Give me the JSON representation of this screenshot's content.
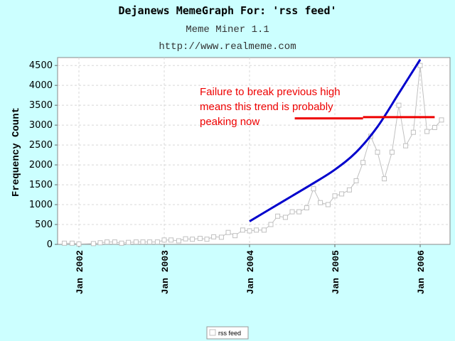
{
  "chart_data": {
    "type": "line",
    "title": "Dejanews MemeGraph For: 'rss feed'",
    "subtitle": "Meme Miner 1.1",
    "url": "http://www.realmeme.com",
    "ylabel": "Frequency Count",
    "xlabel": "",
    "ylim": [
      0,
      4700
    ],
    "yticks": [
      0,
      500,
      1000,
      1500,
      2000,
      2500,
      3000,
      3500,
      4000,
      4500
    ],
    "xlim": [
      2001.75,
      2006.35
    ],
    "xticks": [
      {
        "value": 2002.0,
        "label": "Jan 2002"
      },
      {
        "value": 2003.0,
        "label": "Jan 2003"
      },
      {
        "value": 2004.0,
        "label": "Jan 2004"
      },
      {
        "value": 2005.0,
        "label": "Jan 2005"
      },
      {
        "value": 2006.0,
        "label": "Jan 2006"
      }
    ],
    "grid": true,
    "legend": "bottom-center",
    "series": [
      {
        "name": "rss feed",
        "color": "#c0c0c0",
        "x": [
          2001.83,
          2001.92,
          2002.0,
          2002.17,
          2002.25,
          2002.33,
          2002.42,
          2002.5,
          2002.58,
          2002.67,
          2002.75,
          2002.83,
          2002.92,
          2003.0,
          2003.08,
          2003.17,
          2003.25,
          2003.33,
          2003.42,
          2003.5,
          2003.58,
          2003.67,
          2003.75,
          2003.83,
          2003.92,
          2004.0,
          2004.08,
          2004.17,
          2004.25,
          2004.33,
          2004.42,
          2004.5,
          2004.58,
          2004.67,
          2004.75,
          2004.83,
          2004.92,
          2005.0,
          2005.08,
          2005.17,
          2005.25,
          2005.33,
          2005.42,
          2005.5,
          2005.58,
          2005.67,
          2005.75,
          2005.83,
          2005.92,
          2006.0,
          2006.08,
          2006.17,
          2006.25
        ],
        "values": [
          30,
          30,
          10,
          20,
          40,
          60,
          60,
          30,
          50,
          60,
          60,
          60,
          60,
          110,
          110,
          90,
          140,
          130,
          150,
          130,
          190,
          180,
          300,
          220,
          360,
          340,
          360,
          360,
          500,
          710,
          680,
          820,
          820,
          920,
          1400,
          1050,
          1000,
          1220,
          1270,
          1370,
          1600,
          2060,
          2720,
          2320,
          1650,
          2320,
          3500,
          2480,
          2820,
          4500,
          2840,
          2940,
          3130
        ]
      }
    ],
    "trend": {
      "color": "#0000cc",
      "x": [
        2004.0,
        2004.25,
        2004.5,
        2004.75,
        2005.0,
        2005.25,
        2005.5,
        2005.75,
        2006.0
      ],
      "values": [
        580,
        900,
        1220,
        1540,
        1880,
        2320,
        2960,
        3800,
        4650
      ]
    },
    "annotation": {
      "lines": [
        "Failure to break previous high",
        "means this trend is probably",
        "peaking now"
      ],
      "color": "#ee0000",
      "segments": [
        {
          "x": [
            2004.53,
            2005.33
          ],
          "values": [
            3170,
            3170
          ]
        },
        {
          "x": [
            2005.33,
            2006.17
          ],
          "values": [
            3200,
            3200
          ]
        }
      ]
    }
  }
}
